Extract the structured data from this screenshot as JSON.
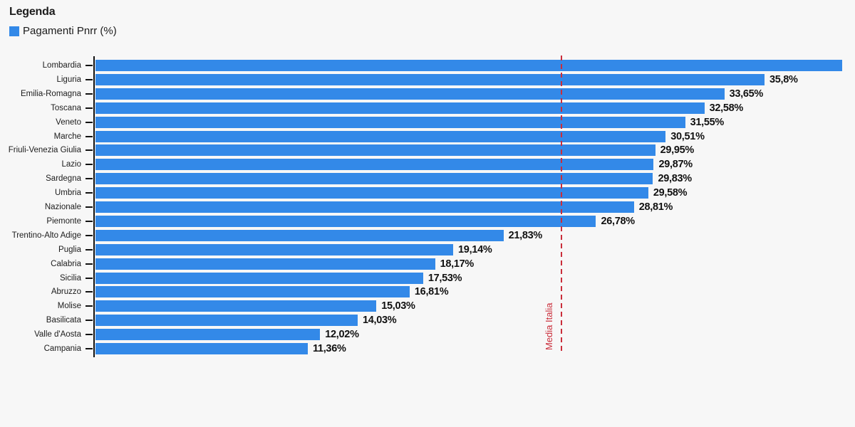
{
  "legend": {
    "title": "Legenda",
    "series_label": "Pagamenti Pnrr (%)"
  },
  "colors": {
    "bar": "#3389E8",
    "background": "#F7F7F7",
    "reference_line": "#CA2E3B",
    "text": "#1C1C1C"
  },
  "chart_data": {
    "type": "bar",
    "orientation": "horizontal",
    "title": "",
    "series_name": "Pagamenti Pnrr (%)",
    "xlabel": "",
    "ylabel": "",
    "xlim": [
      0,
      40.64
    ],
    "grid": false,
    "legend_position": "top-left",
    "categories": [
      "Lombardia",
      "Liguria",
      "Emilia-Romagna",
      "Toscana",
      "Veneto",
      "Marche",
      "Friuli-Venezia Giulia",
      "Lazio",
      "Sardegna",
      "Umbria",
      "Nazionale",
      "Piemonte",
      "Trentino-Alto Adige",
      "Puglia",
      "Calabria",
      "Sicilia",
      "Abruzzo",
      "Molise",
      "Basilicata",
      "Valle d'Aosta",
      "Campania"
    ],
    "values": [
      39.97,
      35.8,
      33.65,
      32.58,
      31.55,
      30.51,
      29.95,
      29.87,
      29.83,
      29.58,
      28.81,
      26.78,
      21.83,
      19.14,
      18.17,
      17.53,
      16.81,
      15.03,
      14.03,
      12.02,
      11.36
    ],
    "value_labels": [
      "",
      "35,8%",
      "33,65%",
      "32,58%",
      "31,55%",
      "30,51%",
      "29,95%",
      "29,87%",
      "29,83%",
      "29,58%",
      "28,81%",
      "26,78%",
      "21,83%",
      "19,14%",
      "18,17%",
      "17,53%",
      "16,81%",
      "15,03%",
      "14,03%",
      "12,02%",
      "11,36%"
    ],
    "reference_line": {
      "label": "Media Italia",
      "value": 24.88
    }
  }
}
